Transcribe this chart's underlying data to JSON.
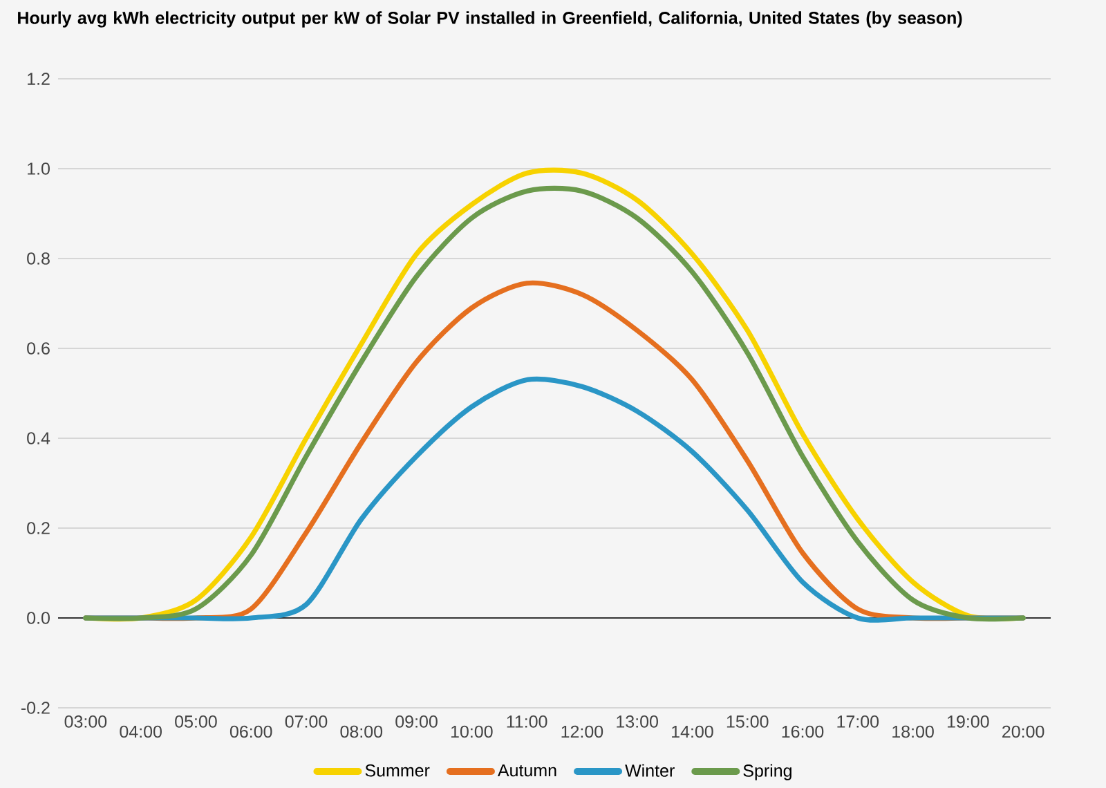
{
  "chart_data": {
    "type": "line",
    "title": "Hourly avg kWh electricity output per kW of Solar PV installed in Greenfield, California, United States (by season)",
    "categories": [
      "03:00",
      "04:00",
      "05:00",
      "06:00",
      "07:00",
      "08:00",
      "09:00",
      "10:00",
      "11:00",
      "12:00",
      "13:00",
      "14:00",
      "15:00",
      "16:00",
      "17:00",
      "18:00",
      "19:00",
      "20:00"
    ],
    "series": [
      {
        "name": "Summer",
        "color": "#f7d200",
        "values": [
          0,
          0,
          0.04,
          0.18,
          0.4,
          0.61,
          0.81,
          0.92,
          0.99,
          0.99,
          0.93,
          0.81,
          0.64,
          0.41,
          0.22,
          0.08,
          0.005,
          0
        ]
      },
      {
        "name": "Autumn",
        "color": "#e56f1f",
        "values": [
          0,
          0,
          0,
          0.02,
          0.19,
          0.39,
          0.57,
          0.69,
          0.745,
          0.72,
          0.64,
          0.53,
          0.35,
          0.145,
          0.02,
          0,
          0,
          0
        ]
      },
      {
        "name": "Winter",
        "color": "#2a96c6",
        "values": [
          0,
          0,
          0,
          0,
          0.03,
          0.22,
          0.36,
          0.47,
          0.53,
          0.515,
          0.46,
          0.37,
          0.24,
          0.08,
          0,
          0,
          0,
          0
        ]
      },
      {
        "name": "Spring",
        "color": "#6b9a4c",
        "values": [
          0,
          0,
          0.02,
          0.14,
          0.36,
          0.57,
          0.76,
          0.89,
          0.95,
          0.95,
          0.89,
          0.77,
          0.59,
          0.36,
          0.17,
          0.04,
          0,
          0
        ]
      }
    ],
    "ylim": [
      -0.2,
      1.2
    ],
    "yticks": [
      {
        "value": -0.2,
        "label": "-0.2"
      },
      {
        "value": 0,
        "label": "0.0"
      },
      {
        "value": 0.2,
        "label": "0.2"
      },
      {
        "value": 0.4,
        "label": "0.4"
      },
      {
        "value": 0.6,
        "label": "0.6"
      },
      {
        "value": 0.8,
        "label": "0.8"
      },
      {
        "value": 1,
        "label": "1.0"
      },
      {
        "value": 1.2,
        "label": "1.2"
      }
    ],
    "ref_lines": [
      {
        "axis": "y",
        "value": 0,
        "color": "#333333"
      }
    ],
    "grid": "y",
    "legend": "bottom"
  }
}
